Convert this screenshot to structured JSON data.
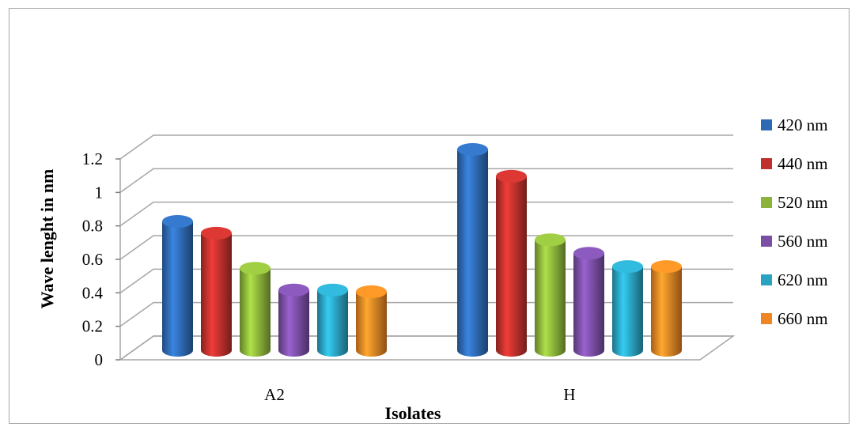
{
  "chart_data": {
    "type": "bar",
    "title": "",
    "xlabel": "Isolates",
    "ylabel": "Wave lenght in nm",
    "categories": [
      "A2",
      "H"
    ],
    "yticks": [
      "0",
      "0.2",
      "0.4",
      "0.6",
      "0.8",
      "1",
      "1.2"
    ],
    "ylim": [
      0,
      1.2
    ],
    "grid": true,
    "legend_position": "right",
    "series": [
      {
        "name": "420 nm",
        "values": [
          0.77,
          1.2
        ],
        "color": "#2e6ab4"
      },
      {
        "name": "440 nm",
        "values": [
          0.7,
          1.04
        ],
        "color": "#c0312d"
      },
      {
        "name": "520 nm",
        "values": [
          0.49,
          0.66
        ],
        "color": "#8cb43a"
      },
      {
        "name": "560 nm",
        "values": [
          0.36,
          0.58
        ],
        "color": "#7b4fa6"
      },
      {
        "name": "620 nm",
        "values": [
          0.36,
          0.5
        ],
        "color": "#2aa3c2"
      },
      {
        "name": "660 nm",
        "values": [
          0.35,
          0.5
        ],
        "color": "#ee8624"
      }
    ]
  }
}
